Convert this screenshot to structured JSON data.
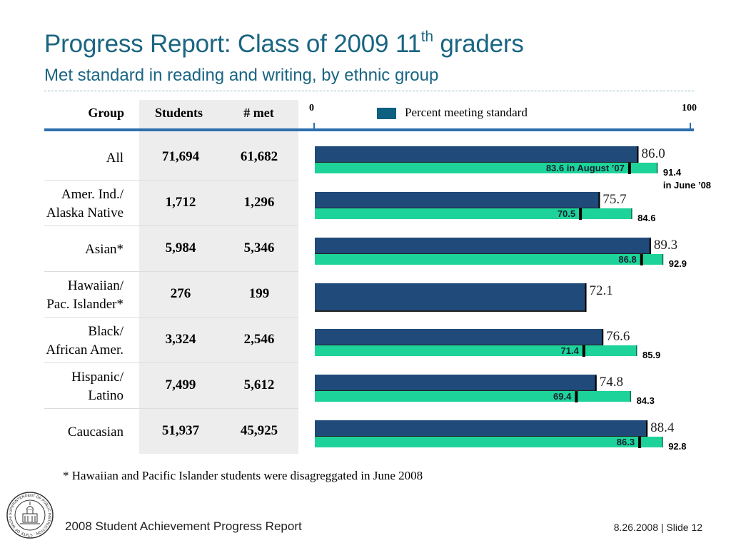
{
  "title_main": "Progress Report: Class of 2009 11",
  "title_sup": "th",
  "title_tail": " graders",
  "subtitle": "Met standard in reading and writing, by ethnic group",
  "table": {
    "headers": {
      "group": "Group",
      "students": "Students",
      "met": "# met"
    },
    "rows": [
      {
        "group_lines": [
          "All"
        ],
        "students": "71,694",
        "met": "61,682"
      },
      {
        "group_lines": [
          "Amer. Ind./",
          "Alaska Native"
        ],
        "students": "1,712",
        "met": "1,296"
      },
      {
        "group_lines": [
          "Asian*"
        ],
        "students": "5,984",
        "met": "5,346"
      },
      {
        "group_lines": [
          "Hawaiian/",
          "Pac. Islander*"
        ],
        "students": "276",
        "met": "199"
      },
      {
        "group_lines": [
          "Black/",
          "African Amer."
        ],
        "students": "3,324",
        "met": "2,546"
      },
      {
        "group_lines": [
          "Hispanic/",
          "Latino"
        ],
        "students": "7,499",
        "met": "5,612"
      },
      {
        "group_lines": [
          "Caucasian"
        ],
        "students": "51,937",
        "met": "45,925"
      }
    ]
  },
  "chart_data": {
    "type": "bar",
    "orientation": "horizontal",
    "xlim": [
      0,
      100
    ],
    "axis_labels": [
      "0",
      "100"
    ],
    "legend": "Percent meeting standard",
    "colors": {
      "main": "#1f4a7a",
      "update": "#1ed39a",
      "legend": "#0d6080"
    },
    "categories": [
      "All",
      "Amer. Ind./Alaska Native",
      "Asian*",
      "Hawaiian/Pac. Islander*",
      "Black/African Amer.",
      "Hispanic/Latino",
      "Caucasian"
    ],
    "series": [
      {
        "values": [
          86.0,
          75.7,
          89.3,
          72.1,
          76.6,
          74.8,
          88.4
        ],
        "labels": [
          "86.0",
          "75.7",
          "89.3",
          "72.1",
          "76.6",
          "74.8",
          "88.4"
        ]
      },
      {
        "values": [
          83.6,
          70.5,
          86.8,
          null,
          71.4,
          69.4,
          86.3
        ],
        "labels": [
          "83.6 in August ’07",
          "70.5",
          "86.8",
          "",
          "71.4",
          "69.4",
          "86.3"
        ]
      },
      {
        "values": [
          91.4,
          84.6,
          92.9,
          null,
          85.9,
          84.3,
          92.8
        ],
        "labels": [
          "91.4",
          "84.6",
          "92.9",
          "",
          "85.9",
          "84.3",
          "92.8"
        ]
      }
    ],
    "annotation": "in June ’08"
  },
  "footnote": "* Hawaiian and Pacific Islander students were disagreggated in June 2008",
  "footer": {
    "left": "2008 Student Achievement Progress Report",
    "right": "8.26.2008  |  Slide 12"
  },
  "seal_text": "SUPERINTENDENT OF PUBLIC INSTRUCTION · STATE OF WASHINGTON · OLYMPIA"
}
